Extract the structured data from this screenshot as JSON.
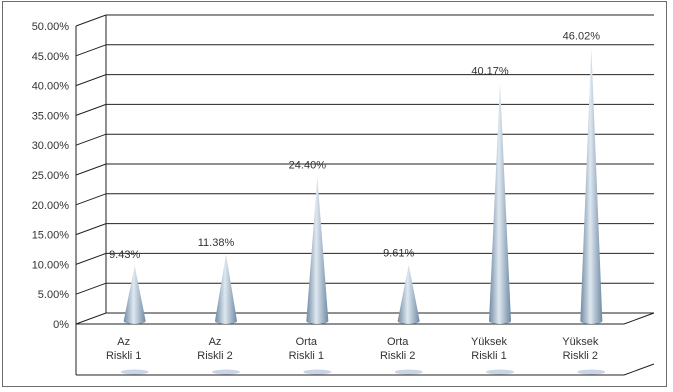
{
  "chart_data": {
    "type": "bar",
    "bar_shape": "cone",
    "categories": [
      [
        "Az",
        "Riskli 1"
      ],
      [
        "Az",
        "Riskli 2"
      ],
      [
        "Orta",
        "Riskli 1"
      ],
      [
        "Orta",
        "Riskli 2"
      ],
      [
        "Yüksek",
        "Riskli 1"
      ],
      [
        "Yüksek",
        "Riskli 2"
      ]
    ],
    "values": [
      9.43,
      11.38,
      24.4,
      9.61,
      40.17,
      46.02
    ],
    "data_labels": [
      "9.43%",
      "11.38%",
      "24.40%",
      "9.61%",
      "40.17%",
      "46.02%"
    ],
    "y_ticks": [
      "0%",
      "5.00%",
      "10.00%",
      "15.00%",
      "20.00%",
      "25.00%",
      "30.00%",
      "35.00%",
      "40.00%",
      "45.00%",
      "50.00%"
    ],
    "ylim": [
      0,
      50
    ],
    "grid": true,
    "colors": {
      "cone_dark": "#6f8aa3",
      "cone_light": "#dfe8f0",
      "grid": "#222222",
      "shadow": "#c9d4e6"
    }
  }
}
